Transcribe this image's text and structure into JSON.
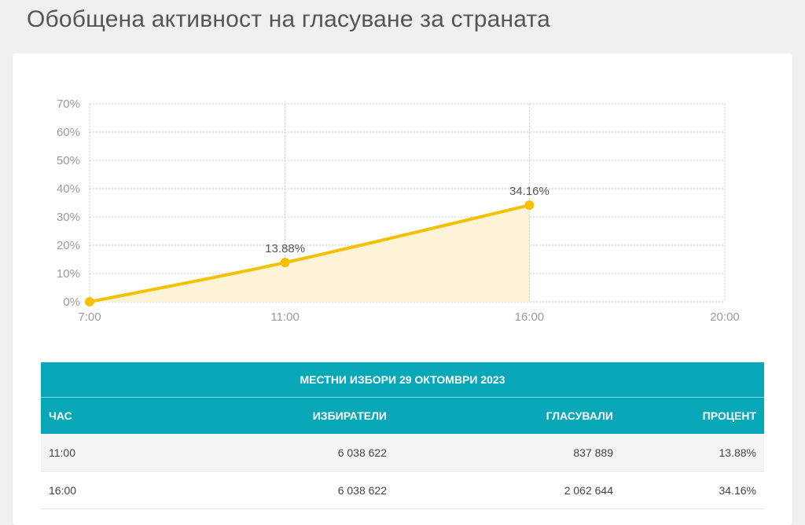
{
  "page": {
    "title": "Обобщена активност на гласуване за страната"
  },
  "chart_data": {
    "type": "area",
    "x": [
      "7:00",
      "11:00",
      "16:00"
    ],
    "x_ticks": [
      "7:00",
      "11:00",
      "16:00",
      "20:00"
    ],
    "y_ticks": [
      "0%",
      "10%",
      "20%",
      "30%",
      "40%",
      "50%",
      "60%",
      "70%"
    ],
    "values": [
      0,
      13.88,
      34.16
    ],
    "data_labels": [
      "",
      "13.88%",
      "34.16%"
    ],
    "ylim": [
      0,
      70
    ],
    "grid": true,
    "colors": {
      "line": "#f5c000",
      "fill": "#fdf3d6",
      "grid": "#c8c8c8"
    }
  },
  "table": {
    "title": "МЕСТНИ ИЗБОРИ 29 ОКТОМВРИ 2023",
    "headers": [
      "ЧАС",
      "ИЗБИРАТЕЛИ",
      "ГЛАСУВАЛИ",
      "ПРОЦЕНТ"
    ],
    "rows": [
      [
        "11:00",
        "6 038 622",
        "837 889",
        "13.88%"
      ],
      [
        "16:00",
        "6 038 622",
        "2 062 644",
        "34.16%"
      ]
    ],
    "header_color": "#08a8b8"
  }
}
